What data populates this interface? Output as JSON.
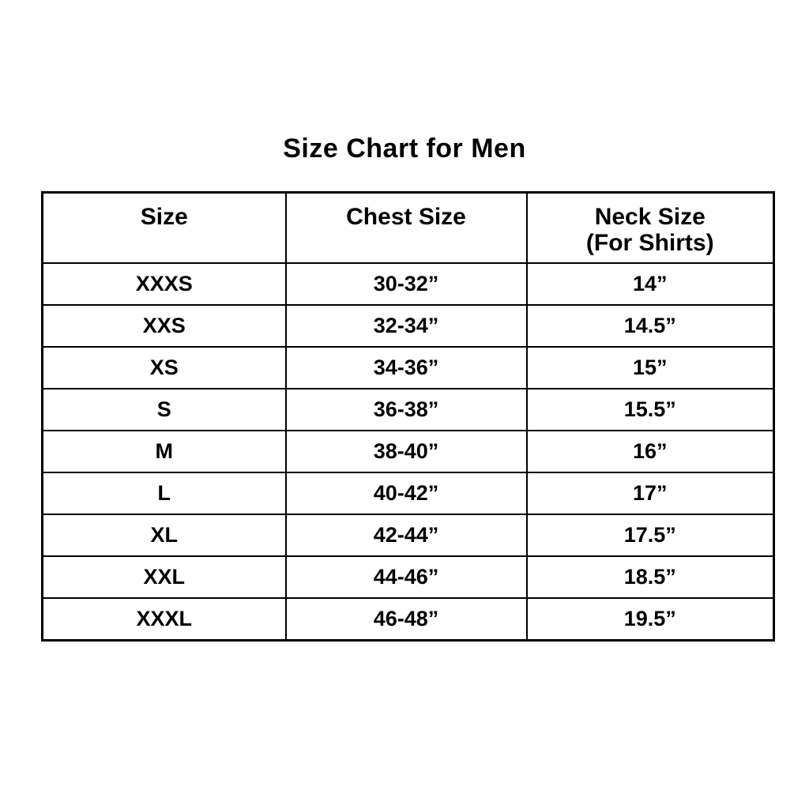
{
  "title": "Size Chart for Men",
  "colors": {
    "text": "#000000",
    "background": "#ffffff",
    "border": "#000000"
  },
  "header_display": {
    "size": "Size",
    "chest": "Chest Size",
    "neck_line1": "Neck Size",
    "neck_line2": "(For Shirts)"
  },
  "chart_data": {
    "type": "table",
    "title": "Size Chart for Men",
    "columns": [
      "Size",
      "Chest Size",
      "Neck Size (For Shirts)"
    ],
    "rows": [
      [
        "XXXS",
        "30-32”",
        "14”"
      ],
      [
        "XXS",
        "32-34”",
        "14.5”"
      ],
      [
        "XS",
        "34-36”",
        "15”"
      ],
      [
        "S",
        "36-38”",
        "15.5”"
      ],
      [
        "M",
        "38-40”",
        "16”"
      ],
      [
        "L",
        "40-42”",
        "17”"
      ],
      [
        "XL",
        "42-44”",
        "17.5”"
      ],
      [
        "XXL",
        "44-46”",
        "18.5”"
      ],
      [
        "XXXL",
        "46-48”",
        "19.5”"
      ]
    ]
  }
}
